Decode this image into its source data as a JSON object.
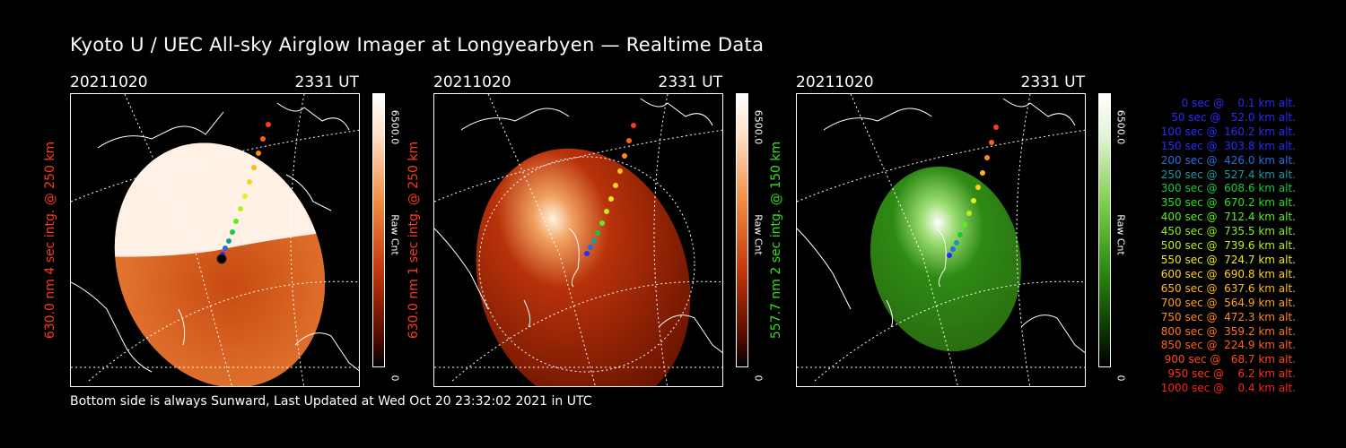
{
  "title": "Kyoto U / UEC All-sky Airglow Imager at Longyearbyen — Realtime Data",
  "footer": "Bottom side is always Sunward, Last Updated at Wed Oct 20 23:32:02 2021 in UTC",
  "panels": [
    {
      "date": "20211020",
      "time": "2331 UT",
      "ylabel": "630.0 nm  4 sec intg. @ 250 km",
      "label_color": "#ff3a1a",
      "cb_max": "6500.0",
      "cb_unit": "Raw Cnt",
      "cb_min": "0",
      "cb_colors": [
        "#ffffff",
        "#ffe0c8",
        "#f08a40",
        "#c2360c",
        "#5a0c00",
        "#000000"
      ]
    },
    {
      "date": "20211020",
      "time": "2331 UT",
      "ylabel": "630.0 nm  1 sec intg. @ 250 km",
      "label_color": "#ff3a1a",
      "cb_max": "6500.0",
      "cb_unit": "Raw Cnt",
      "cb_min": "0",
      "cb_colors": [
        "#ffffff",
        "#ffe0c8",
        "#f08a40",
        "#c2360c",
        "#5a0c00",
        "#000000"
      ]
    },
    {
      "date": "20211020",
      "time": "2331 UT",
      "ylabel": "557.7 nm  2 sec intg. @ 150 km",
      "label_color": "#33e01a",
      "cb_max": "6500.0",
      "cb_unit": "Raw Cnt",
      "cb_min": "0",
      "cb_colors": [
        "#ffffff",
        "#e2f5d8",
        "#7ed04a",
        "#2a8a10",
        "#0a3000",
        "#000000"
      ]
    }
  ],
  "legend": [
    {
      "text": "   0 sec @    0.1 km alt.",
      "color": "#2a2aff"
    },
    {
      "text": "  50 sec @   52.0 km alt.",
      "color": "#2a2aff"
    },
    {
      "text": " 100 sec @  160.2 km alt.",
      "color": "#2a2aff"
    },
    {
      "text": " 150 sec @  303.8 km alt.",
      "color": "#2a2aff"
    },
    {
      "text": " 200 sec @  426.0 km alt.",
      "color": "#2a6ae0"
    },
    {
      "text": " 250 sec @  527.4 km alt.",
      "color": "#1a9a9a"
    },
    {
      "text": " 300 sec @  608.6 km alt.",
      "color": "#1ac83a"
    },
    {
      "text": " 350 sec @  670.2 km alt.",
      "color": "#2ae01a"
    },
    {
      "text": " 400 sec @  712.4 km alt.",
      "color": "#5aee1a"
    },
    {
      "text": " 450 sec @  735.5 km alt.",
      "color": "#8aee1a"
    },
    {
      "text": " 500 sec @  739.6 km alt.",
      "color": "#baee1a"
    },
    {
      "text": " 550 sec @  724.7 km alt.",
      "color": "#e8ee1a"
    },
    {
      "text": " 600 sec @  690.8 km alt.",
      "color": "#ffd21a"
    },
    {
      "text": " 650 sec @  637.6 km alt.",
      "color": "#ffb81a"
    },
    {
      "text": " 700 sec @  564.9 km alt.",
      "color": "#ffa01a"
    },
    {
      "text": " 750 sec @  472.3 km alt.",
      "color": "#ff8a1a"
    },
    {
      "text": " 800 sec @  359.2 km alt.",
      "color": "#ff741a"
    },
    {
      "text": " 850 sec @  224.9 km alt.",
      "color": "#ff5e1a"
    },
    {
      "text": " 900 sec @   68.7 km alt.",
      "color": "#ff481a"
    },
    {
      "text": " 950 sec @    6.2 km alt.",
      "color": "#ff341a"
    },
    {
      "text": "1000 sec @    0.4 km alt.",
      "color": "#ff201a"
    }
  ]
}
